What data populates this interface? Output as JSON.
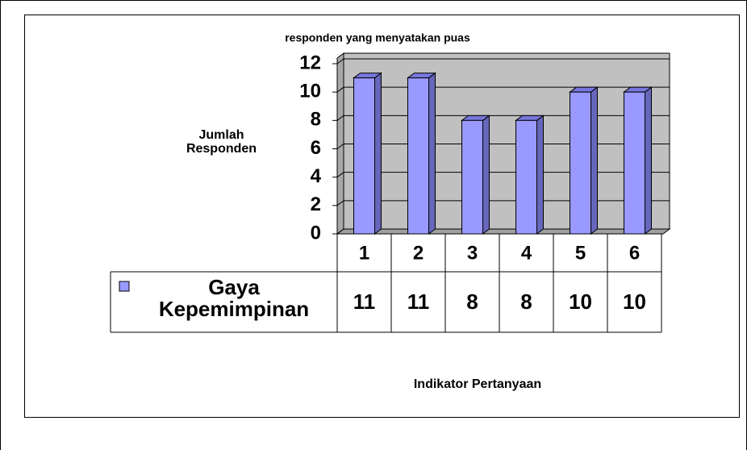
{
  "chart_data": {
    "type": "bar",
    "title": "responden yang menyatakan puas",
    "y_label": "Jumlah Responden",
    "x_label": "Indikator Pertanyaan",
    "categories": [
      "1",
      "2",
      "3",
      "4",
      "5",
      "6"
    ],
    "series": [
      {
        "name": "Gaya Kepemimpinan",
        "color": "#9999ff",
        "values": [
          11,
          11,
          8,
          8,
          10,
          10
        ]
      }
    ],
    "ylim": [
      0,
      12
    ],
    "yticks": [
      0,
      2,
      4,
      6,
      8,
      10,
      12
    ],
    "grid": true,
    "data_table": true
  }
}
